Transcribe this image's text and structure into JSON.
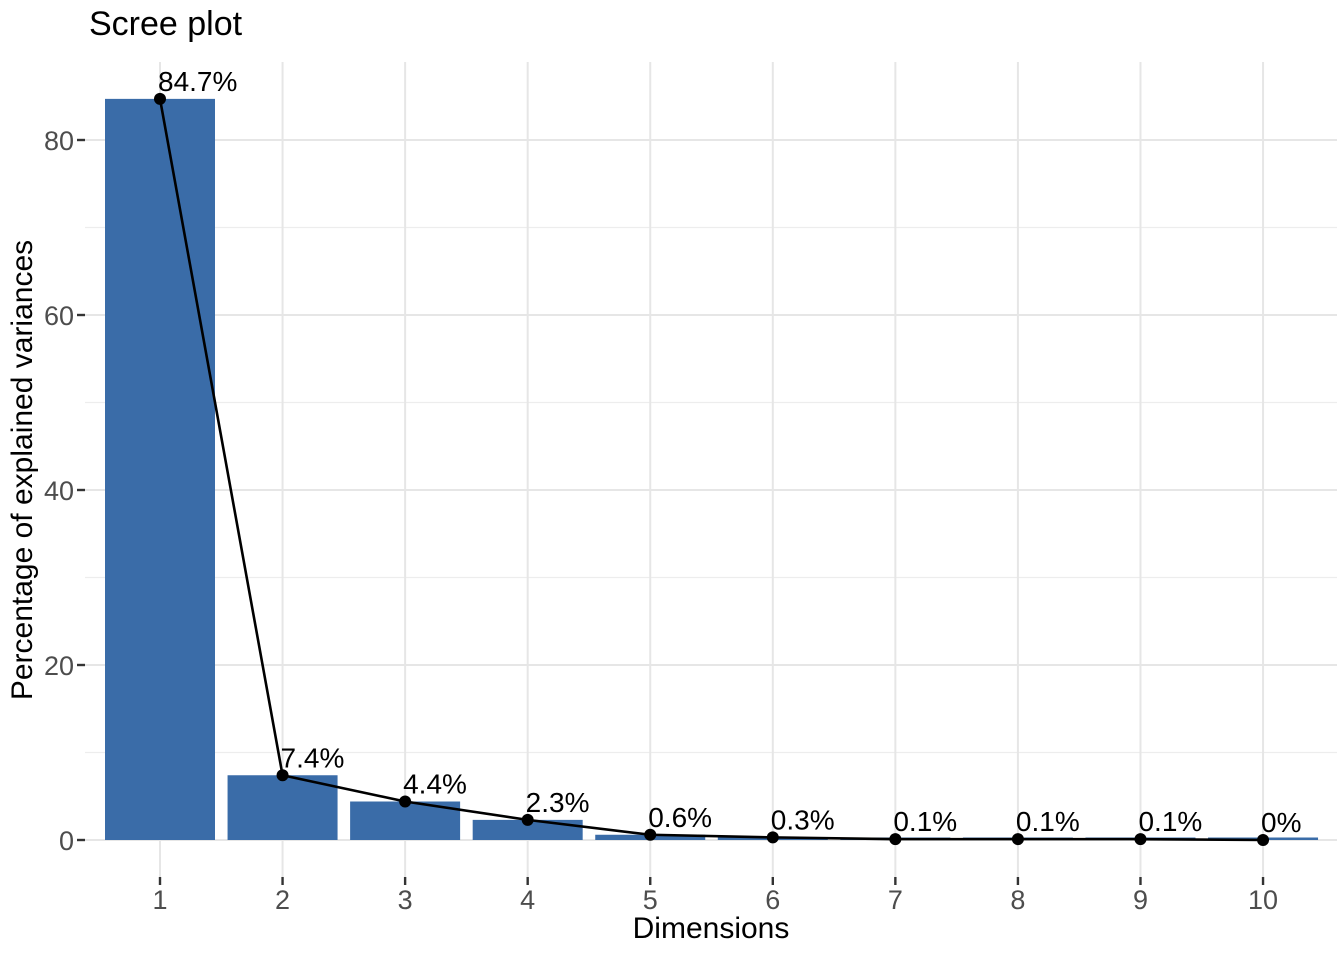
{
  "chart_data": {
    "type": "bar",
    "overlay": "line+points",
    "title": "Scree plot",
    "xlabel": "Dimensions",
    "ylabel": "Percentage of explained variances",
    "categories": [
      "1",
      "2",
      "3",
      "4",
      "5",
      "6",
      "7",
      "8",
      "9",
      "10"
    ],
    "values": [
      84.7,
      7.4,
      4.4,
      2.3,
      0.6,
      0.3,
      0.1,
      0.1,
      0.1,
      0
    ],
    "point_labels": [
      "84.7%",
      "7.4%",
      "4.4%",
      "2.3%",
      "0.6%",
      "0.3%",
      "0.1%",
      "0.1%",
      "0.1%",
      "0%"
    ],
    "yticks": [
      0,
      20,
      40,
      60,
      80
    ],
    "y_minor_ticks": [
      10,
      30,
      50,
      70
    ],
    "ylim": [
      -4.2,
      88.9
    ],
    "grid": true,
    "legend": "none",
    "colors": {
      "bar_fill": "#3A6CA8",
      "line": "#000000",
      "point": "#000000",
      "grid_major": "#E6E6E6",
      "grid_minor": "#EDEDED",
      "tick_mark": "#333333",
      "tick_label": "#4D4D4D",
      "text": "#000000",
      "background": "#FFFFFF"
    }
  }
}
